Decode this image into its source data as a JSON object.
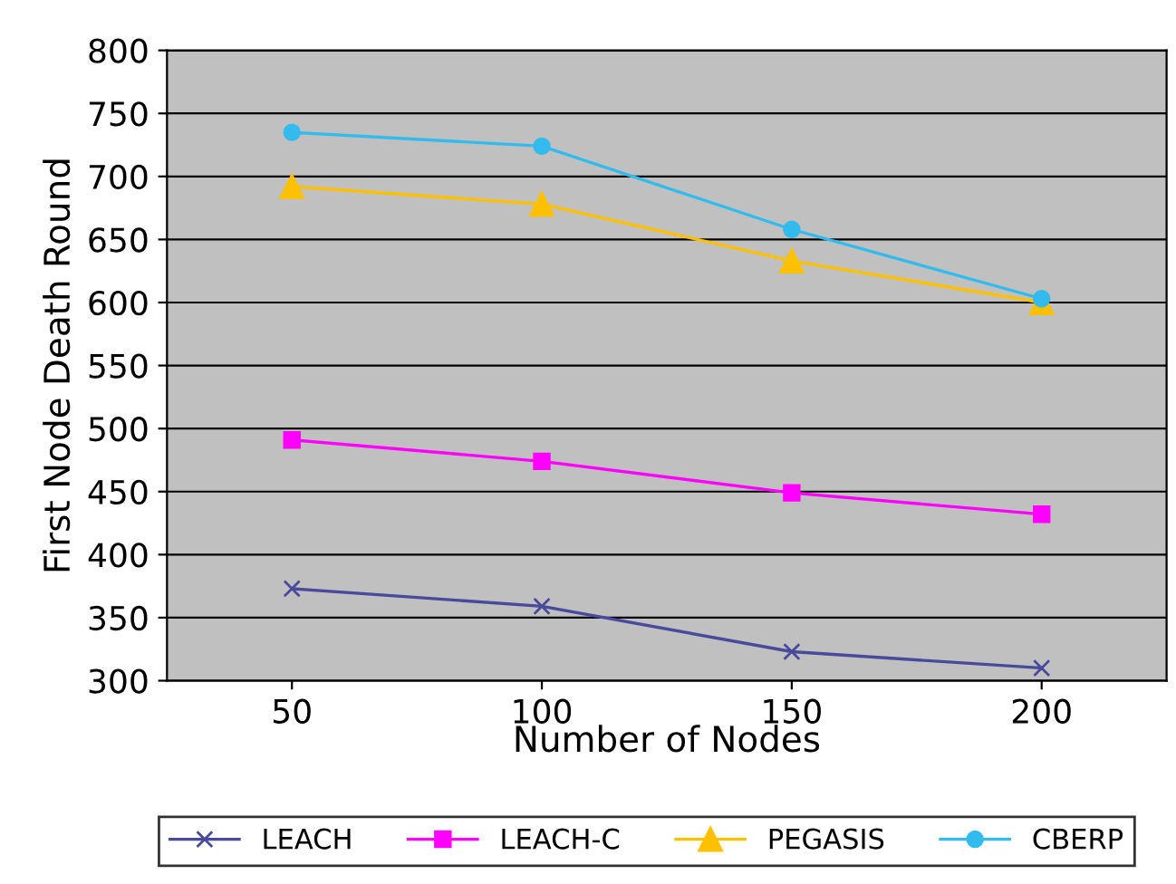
{
  "chart_data": {
    "type": "line",
    "xlabel": "Number of Nodes",
    "ylabel": "First Node Death Round",
    "categories": [
      "50",
      "100",
      "150",
      "200"
    ],
    "ylim": [
      300,
      800
    ],
    "yticks": [
      300,
      350,
      400,
      450,
      500,
      550,
      600,
      650,
      700,
      750,
      800
    ],
    "grid": "y",
    "legend": "bottom",
    "series": [
      {
        "name": "LEACH",
        "color": "#4a4a9c",
        "marker": "cross",
        "values": [
          373,
          359,
          323,
          310
        ]
      },
      {
        "name": "LEACH-C",
        "color": "#ff00ff",
        "marker": "square",
        "values": [
          491,
          474,
          449,
          432
        ]
      },
      {
        "name": "PEGASIS",
        "color": "#ffc000",
        "marker": "triangle",
        "values": [
          692,
          678,
          633,
          600
        ]
      },
      {
        "name": "CBERP",
        "color": "#33bbee",
        "marker": "circle",
        "values": [
          735,
          724,
          658,
          603
        ]
      }
    ]
  }
}
